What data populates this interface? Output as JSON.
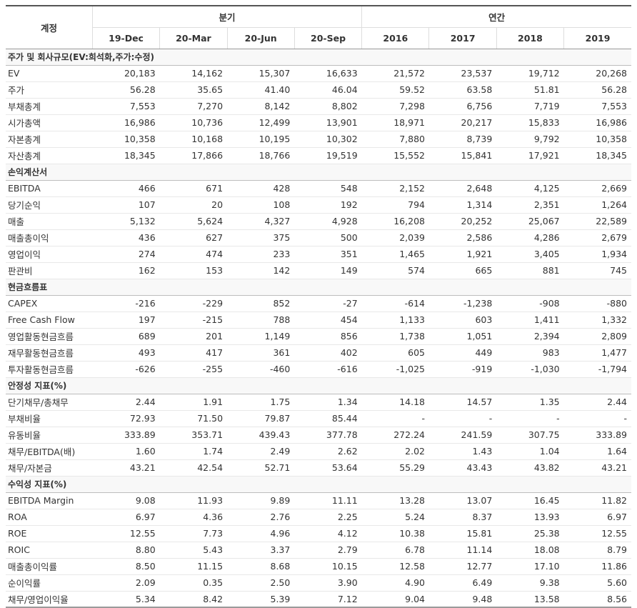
{
  "header": {
    "account_label": "계정",
    "quarterly_label": "분기",
    "annual_label": "연간",
    "periods": [
      "19-Dec",
      "20-Mar",
      "20-Jun",
      "20-Sep",
      "2016",
      "2017",
      "2018",
      "2019"
    ]
  },
  "sections": [
    {
      "title": "주가 및 회사규모(EV:희석화,주가:수정)",
      "rows": [
        {
          "label": "EV",
          "values": [
            "20,183",
            "14,162",
            "15,307",
            "16,633",
            "21,572",
            "23,537",
            "19,712",
            "20,268"
          ]
        },
        {
          "label": "주가",
          "values": [
            "56.28",
            "35.65",
            "41.40",
            "46.04",
            "59.52",
            "63.58",
            "51.81",
            "56.28"
          ]
        },
        {
          "label": "부채총계",
          "values": [
            "7,553",
            "7,270",
            "8,142",
            "8,802",
            "7,298",
            "6,756",
            "7,719",
            "7,553"
          ]
        },
        {
          "label": "시가총액",
          "values": [
            "16,986",
            "10,736",
            "12,499",
            "13,901",
            "18,971",
            "20,217",
            "15,833",
            "16,986"
          ]
        },
        {
          "label": "자본총계",
          "values": [
            "10,358",
            "10,168",
            "10,195",
            "10,302",
            "7,880",
            "8,739",
            "9,792",
            "10,358"
          ]
        },
        {
          "label": "자산총계",
          "values": [
            "18,345",
            "17,866",
            "18,766",
            "19,519",
            "15,552",
            "15,841",
            "17,921",
            "18,345"
          ]
        }
      ]
    },
    {
      "title": "손익계산서",
      "rows": [
        {
          "label": "EBITDA",
          "values": [
            "466",
            "671",
            "428",
            "548",
            "2,152",
            "2,648",
            "4,125",
            "2,669"
          ]
        },
        {
          "label": "당기순익",
          "values": [
            "107",
            "20",
            "108",
            "192",
            "794",
            "1,314",
            "2,351",
            "1,264"
          ]
        },
        {
          "label": "매출",
          "values": [
            "5,132",
            "5,624",
            "4,327",
            "4,928",
            "16,208",
            "20,252",
            "25,067",
            "22,589"
          ]
        },
        {
          "label": "매출총이익",
          "values": [
            "436",
            "627",
            "375",
            "500",
            "2,039",
            "2,586",
            "4,286",
            "2,679"
          ]
        },
        {
          "label": "영업이익",
          "values": [
            "274",
            "474",
            "233",
            "351",
            "1,465",
            "1,921",
            "3,405",
            "1,934"
          ]
        },
        {
          "label": "판관비",
          "values": [
            "162",
            "153",
            "142",
            "149",
            "574",
            "665",
            "881",
            "745"
          ]
        }
      ]
    },
    {
      "title": "현금흐름표",
      "rows": [
        {
          "label": "CAPEX",
          "values": [
            "-216",
            "-229",
            "852",
            "-27",
            "-614",
            "-1,238",
            "-908",
            "-880"
          ]
        },
        {
          "label": "Free Cash Flow",
          "values": [
            "197",
            "-215",
            "788",
            "454",
            "1,133",
            "603",
            "1,411",
            "1,332"
          ]
        },
        {
          "label": "영업활동현금흐름",
          "values": [
            "689",
            "201",
            "1,149",
            "856",
            "1,738",
            "1,051",
            "2,394",
            "2,809"
          ]
        },
        {
          "label": "재무활동현금흐름",
          "values": [
            "493",
            "417",
            "361",
            "402",
            "605",
            "449",
            "983",
            "1,477"
          ]
        },
        {
          "label": "투자활동현금흐름",
          "values": [
            "-626",
            "-255",
            "-460",
            "-616",
            "-1,025",
            "-919",
            "-1,030",
            "-1,794"
          ]
        }
      ]
    },
    {
      "title": "안정성 지표(%)",
      "rows": [
        {
          "label": "단기채무/총채무",
          "values": [
            "2.44",
            "1.91",
            "1.75",
            "1.34",
            "14.18",
            "14.57",
            "1.35",
            "2.44"
          ]
        },
        {
          "label": "부채비율",
          "values": [
            "72.93",
            "71.50",
            "79.87",
            "85.44",
            "-",
            "-",
            "-",
            "-"
          ]
        },
        {
          "label": "유동비율",
          "values": [
            "333.89",
            "353.71",
            "439.43",
            "377.78",
            "272.24",
            "241.59",
            "307.75",
            "333.89"
          ]
        },
        {
          "label": "채무/EBITDA(배)",
          "values": [
            "1.60",
            "1.74",
            "2.49",
            "2.62",
            "2.02",
            "1.43",
            "1.04",
            "1.64"
          ]
        },
        {
          "label": "채무/자본금",
          "values": [
            "43.21",
            "42.54",
            "52.71",
            "53.64",
            "55.29",
            "43.43",
            "43.82",
            "43.21"
          ]
        }
      ]
    },
    {
      "title": "수익성 지표(%)",
      "rows": [
        {
          "label": "EBITDA Margin",
          "values": [
            "9.08",
            "11.93",
            "9.89",
            "11.11",
            "13.28",
            "13.07",
            "16.45",
            "11.82"
          ]
        },
        {
          "label": "ROA",
          "values": [
            "6.97",
            "4.36",
            "2.76",
            "2.25",
            "5.24",
            "8.37",
            "13.93",
            "6.97"
          ]
        },
        {
          "label": "ROE",
          "values": [
            "12.55",
            "7.73",
            "4.96",
            "4.12",
            "10.38",
            "15.81",
            "25.38",
            "12.55"
          ]
        },
        {
          "label": "ROIC",
          "values": [
            "8.80",
            "5.43",
            "3.37",
            "2.79",
            "6.78",
            "11.14",
            "18.08",
            "8.79"
          ]
        },
        {
          "label": "매출총이익률",
          "values": [
            "8.50",
            "11.15",
            "8.68",
            "10.15",
            "12.58",
            "12.77",
            "17.10",
            "11.86"
          ]
        },
        {
          "label": "순이익률",
          "values": [
            "2.09",
            "0.35",
            "2.50",
            "3.90",
            "4.90",
            "6.49",
            "9.38",
            "5.60"
          ]
        },
        {
          "label": "채무/영업이익율",
          "values": [
            "5.34",
            "8.42",
            "5.39",
            "7.12",
            "9.04",
            "9.48",
            "13.58",
            "8.56"
          ]
        }
      ]
    }
  ]
}
